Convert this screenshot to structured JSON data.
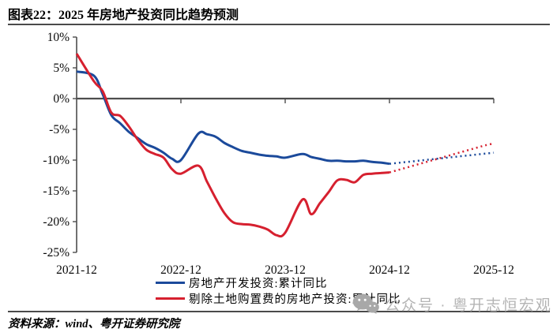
{
  "title": "图表22：2025 年房地产投资同比趋势预测",
  "source": "资料来源：wind、粤开证券研究院",
  "watermark": {
    "icon": "wechat-icon",
    "text": "公众号 · 粤开志恒宏观"
  },
  "colors": {
    "blue_series": "#1b4a9b",
    "red_series": "#d6202f",
    "axis": "#4d4d4d",
    "rule": "#4a4a4a",
    "watermark_gray": "#a8a8a8"
  },
  "chart_data": {
    "type": "line",
    "title": "2025 年房地产投资同比趋势预测",
    "xlabel": "",
    "ylabel": "",
    "grid": false,
    "legend_position": "bottom",
    "y_axis": {
      "ticks": [
        "10%",
        "5%",
        "0%",
        "-5%",
        "-10%",
        "-15%",
        "-20%",
        "-25%"
      ],
      "tick_values": [
        10,
        5,
        0,
        -5,
        -10,
        -15,
        -20,
        -25
      ],
      "min": -25,
      "max": 10
    },
    "x_axis": {
      "ticks": [
        "2021-12",
        "2022-12",
        "2023-12",
        "2024-12",
        "2025-12"
      ]
    },
    "legend": [
      {
        "label": "房地产开发投资:累计同比",
        "color": "#1b4a9b"
      },
      {
        "label": "剔除土地购置费的房地产投资:累计同比",
        "color": "#d6202f"
      }
    ],
    "series": [
      {
        "name": "房地产开发投资:累计同比",
        "segment": "history",
        "style": "solid",
        "color": "#1b4a9b",
        "dates": [
          "2021-12",
          "2022-02",
          "2022-03",
          "2022-04",
          "2022-05",
          "2022-06",
          "2022-07",
          "2022-08",
          "2022-09",
          "2022-10",
          "2022-11",
          "2022-12",
          "2023-02",
          "2023-03",
          "2023-04",
          "2023-05",
          "2023-06",
          "2023-07",
          "2023-08",
          "2023-09",
          "2023-10",
          "2023-11",
          "2023-12",
          "2024-02",
          "2024-03",
          "2024-04",
          "2024-05",
          "2024-06",
          "2024-07",
          "2024-08",
          "2024-09",
          "2024-10",
          "2024-11",
          "2024-12"
        ],
        "values": [
          4.4,
          3.7,
          0.7,
          -2.7,
          -4.0,
          -5.4,
          -6.4,
          -7.4,
          -8.0,
          -8.8,
          -9.8,
          -10.0,
          -5.7,
          -5.8,
          -6.2,
          -7.2,
          -7.9,
          -8.5,
          -8.8,
          -9.1,
          -9.3,
          -9.4,
          -9.6,
          -9.0,
          -9.5,
          -9.8,
          -10.1,
          -10.1,
          -10.2,
          -10.2,
          -10.1,
          -10.3,
          -10.4,
          -10.6
        ]
      },
      {
        "name": "房地产开发投资:累计同比",
        "segment": "forecast",
        "style": "dotted",
        "color": "#1b4a9b",
        "dates": [
          "2024-12",
          "2025-01",
          "2025-02",
          "2025-03",
          "2025-04",
          "2025-05",
          "2025-06",
          "2025-07",
          "2025-08",
          "2025-09",
          "2025-10",
          "2025-11",
          "2025-12"
        ],
        "values": [
          -10.6,
          -10.45,
          -10.3,
          -10.15,
          -10.0,
          -9.85,
          -9.7,
          -9.55,
          -9.4,
          -9.25,
          -9.1,
          -8.95,
          -8.8
        ]
      },
      {
        "name": "剔除土地购置费的房地产投资:累计同比",
        "segment": "history",
        "style": "solid",
        "color": "#d6202f",
        "dates": [
          "2021-12",
          "2022-02",
          "2022-03",
          "2022-04",
          "2022-05",
          "2022-06",
          "2022-07",
          "2022-08",
          "2022-09",
          "2022-10",
          "2022-11",
          "2022-12",
          "2023-02",
          "2023-03",
          "2023-04",
          "2023-05",
          "2023-06",
          "2023-07",
          "2023-08",
          "2023-09",
          "2023-10",
          "2023-11",
          "2023-12",
          "2024-02",
          "2024-03",
          "2024-04",
          "2024-05",
          "2024-06",
          "2024-07",
          "2024-08",
          "2024-09",
          "2024-10",
          "2024-11",
          "2024-12"
        ],
        "values": [
          7.3,
          2.8,
          1.2,
          -2.3,
          -2.8,
          -4.5,
          -6.6,
          -8.3,
          -9.0,
          -9.6,
          -11.5,
          -12.2,
          -10.9,
          -13.5,
          -16.2,
          -18.6,
          -20.1,
          -20.4,
          -20.5,
          -20.8,
          -21.3,
          -22.2,
          -21.8,
          -16.4,
          -18.8,
          -17.0,
          -15.2,
          -13.3,
          -13.2,
          -13.6,
          -12.4,
          -12.2,
          -12.1,
          -12.0
        ]
      },
      {
        "name": "剔除土地购置费的房地产投资:累计同比",
        "segment": "forecast",
        "style": "dotted",
        "color": "#d6202f",
        "dates": [
          "2024-12",
          "2025-01",
          "2025-02",
          "2025-03",
          "2025-04",
          "2025-05",
          "2025-06",
          "2025-07",
          "2025-08",
          "2025-09",
          "2025-10",
          "2025-11",
          "2025-12"
        ],
        "values": [
          -12.0,
          -11.6,
          -11.2,
          -10.8,
          -10.4,
          -10.0,
          -9.6,
          -9.2,
          -8.8,
          -8.4,
          -8.0,
          -7.6,
          -7.3
        ]
      }
    ]
  }
}
